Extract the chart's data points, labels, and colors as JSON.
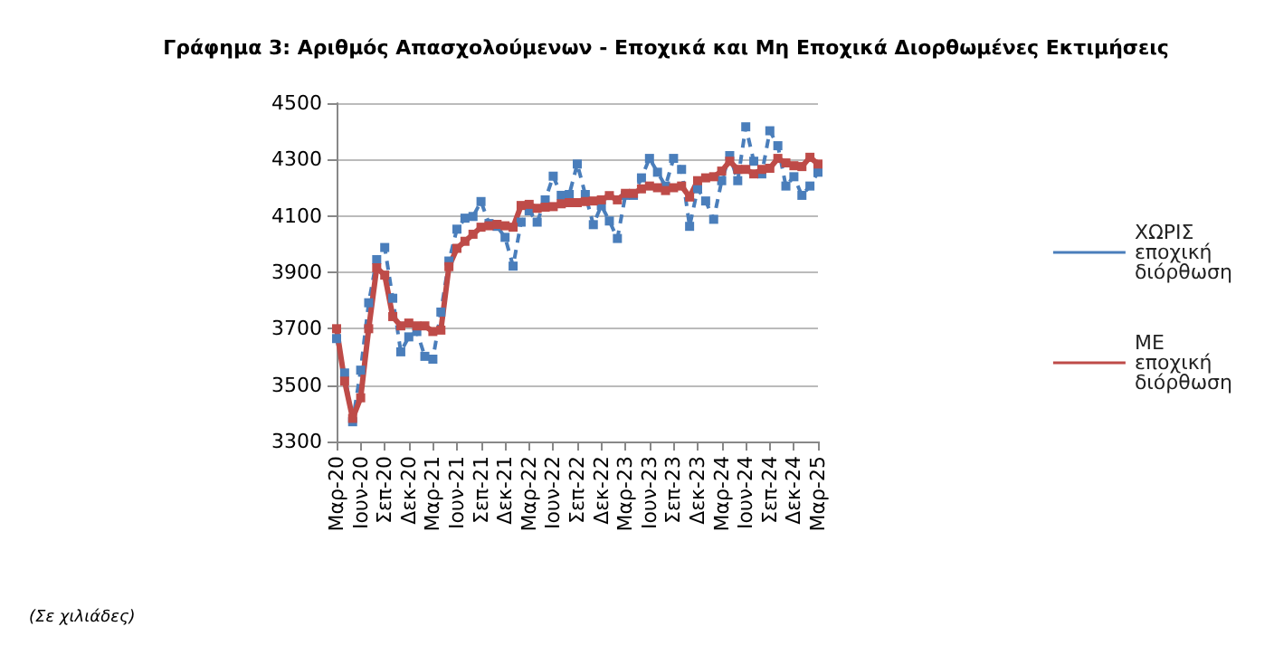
{
  "chart_data": {
    "type": "line",
    "title": "Γράφημα 3: Αριθμός Απασχολούμενων - Εποχικά και Μη Εποχικά Διορθωμένες Εκτιμήσεις",
    "categories": [
      "Μαρ-20",
      null,
      null,
      "Ιουν-20",
      null,
      null,
      "Σεπ-20",
      null,
      null,
      "Δεκ-20",
      null,
      null,
      "Μαρ-21",
      null,
      null,
      "Ιουν-21",
      null,
      null,
      "Σεπ-21",
      null,
      null,
      "Δεκ-21",
      null,
      null,
      "Μαρ-22",
      null,
      null,
      "Ιουν-22",
      null,
      null,
      "Σεπ-22",
      null,
      null,
      "Δεκ-22",
      null,
      null,
      "Μαρ-23",
      null,
      null,
      "Ιουν-23",
      null,
      null,
      "Σεπ-23",
      null,
      null,
      "Δεκ-23",
      null,
      null,
      "Μαρ-24",
      null,
      null,
      "Ιουν-24",
      null,
      null,
      "Σεπ-24",
      null,
      null,
      "Δεκ-24",
      null,
      null,
      "Μαρ-25"
    ],
    "series": [
      {
        "name": "ΧΩΡΙΣ εποχική διόρθωση",
        "color": "#4a7ebb",
        "line_style": "dashed",
        "values": [
          3665,
          3543,
          3370,
          3553,
          3792,
          3945,
          3988,
          3808,
          3618,
          3671,
          3690,
          3602,
          3592,
          3759,
          3940,
          4053,
          4092,
          4098,
          4151,
          4073,
          4063,
          4024,
          3922,
          4078,
          4118,
          4078,
          4157,
          4241,
          4173,
          4176,
          4284,
          4176,
          4069,
          4137,
          4082,
          4020,
          4173,
          4173,
          4235,
          4304,
          4255,
          4206,
          4304,
          4265,
          4063,
          4196,
          4153,
          4088,
          4225,
          4314,
          4225,
          4416,
          4294,
          4249,
          4402,
          4349,
          4206,
          4239,
          4173,
          4206,
          4255
        ]
      },
      {
        "name": "ΜΕ εποχική διόρθωση",
        "color": "#be4b48",
        "line_style": "solid",
        "values": [
          3700,
          3514,
          3382,
          3455,
          3700,
          3916,
          3890,
          3743,
          3710,
          3720,
          3710,
          3710,
          3690,
          3695,
          3920,
          3985,
          4010,
          4035,
          4060,
          4065,
          4070,
          4065,
          4060,
          4137,
          4141,
          4127,
          4131,
          4133,
          4143,
          4147,
          4147,
          4151,
          4153,
          4157,
          4172,
          4157,
          4180,
          4180,
          4196,
          4206,
          4200,
          4190,
          4200,
          4206,
          4167,
          4225,
          4235,
          4239,
          4259,
          4294,
          4265,
          4265,
          4249,
          4265,
          4269,
          4304,
          4288,
          4278,
          4275,
          4308,
          4284
        ]
      }
    ],
    "ylim": [
      3300,
      4500
    ],
    "yticks": [
      3300,
      3500,
      3700,
      3900,
      4100,
      4300,
      4500
    ],
    "grid": "y",
    "legend": "right",
    "marker": "square",
    "annotations": [
      "(Σε χιλιάδες)"
    ]
  }
}
